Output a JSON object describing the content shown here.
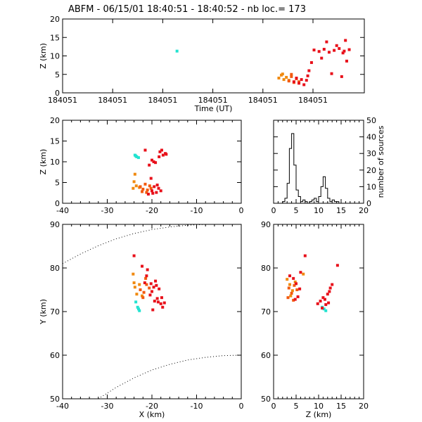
{
  "title": "ABFM - 06/15/01 18:40:51 - 18:40:52 - nb loc.=     173",
  "colors": {
    "cyan": "#22e3d0",
    "orange": "#f08a10",
    "dark_orange": "#f25a10",
    "red": "#e8101a",
    "axis": "#000000"
  },
  "chart_data": [
    {
      "type": "scatter",
      "panel": "time-height",
      "xlabel": "Time (UT)",
      "ylabel": "Z (km)",
      "xtick_labels": [
        "184051",
        "184051",
        "184051",
        "184051",
        "184051",
        "184051"
      ],
      "yticks": [
        0,
        5,
        10,
        15,
        20
      ],
      "ylim": [
        0,
        20
      ],
      "clusters": [
        {
          "color": "cyan",
          "x": [
            0.455
          ],
          "y": [
            11.3
          ]
        },
        {
          "color": "orange",
          "x": [
            0.86,
            0.87,
            0.88,
            0.875,
            0.89,
            0.9
          ],
          "y": [
            4.0,
            4.8,
            3.6,
            5.1,
            4.2,
            3.4
          ]
        },
        {
          "color": "dark_orange",
          "x": [
            0.9,
            0.91,
            0.92,
            0.93,
            0.91,
            0.94
          ],
          "y": [
            3.2,
            4.4,
            2.8,
            3.8,
            5.0,
            3.0
          ]
        },
        {
          "color": "red",
          "x": [
            0.92,
            0.94,
            0.95,
            0.96,
            0.97,
            0.93,
            0.975,
            0.99,
            1.0,
            1.02,
            1.04,
            1.06,
            1.08,
            1.1,
            1.12,
            0.98,
            1.03,
            1.07,
            1.11,
            1.13,
            1.14,
            1.05,
            1.09,
            1.115,
            1.125
          ],
          "y": [
            3.0,
            2.6,
            3.6,
            2.2,
            3.4,
            4.0,
            4.6,
            8.2,
            11.6,
            11.2,
            11.8,
            11.0,
            11.5,
            12.0,
            11.3,
            6.0,
            9.4,
            5.2,
            4.4,
            8.6,
            11.7,
            13.8,
            12.8,
            10.8,
            14.2
          ]
        }
      ]
    },
    {
      "type": "scatter",
      "panel": "x-height",
      "xlabel": "",
      "ylabel": "Z (km)",
      "xticks": [
        -40,
        -30,
        -20,
        -10,
        0
      ],
      "xlim": [
        -40,
        0
      ],
      "yticks": [
        0,
        5,
        10,
        15,
        20
      ],
      "ylim": [
        0,
        20
      ],
      "clusters": [
        {
          "color": "cyan",
          "x": [
            -23.8,
            -23.4,
            -23.0,
            -23.6
          ],
          "y": [
            11.6,
            11.2,
            11.0,
            11.4
          ]
        },
        {
          "color": "orange",
          "x": [
            -24.0,
            -23.5,
            -22.8,
            -23.8,
            -24.2
          ],
          "y": [
            5.2,
            4.2,
            3.8,
            7.0,
            3.6
          ]
        },
        {
          "color": "dark_orange",
          "x": [
            -22.6,
            -22.0,
            -21.5,
            -21.0,
            -20.5,
            -22.2,
            -21.2,
            -20.2
          ],
          "y": [
            4.0,
            3.4,
            4.6,
            3.2,
            4.2,
            2.8,
            2.6,
            3.6
          ]
        },
        {
          "color": "red",
          "x": [
            -20.0,
            -19.5,
            -19.0,
            -18.5,
            -18.0,
            -19.8,
            -18.8,
            -17.5,
            -17.0,
            -18.2,
            -19.2,
            -20.6,
            -20.0,
            -19.6,
            -20.2,
            -18.4,
            -17.8,
            -16.8,
            -21.5,
            -20.8
          ],
          "y": [
            3.0,
            4.0,
            2.6,
            3.6,
            3.0,
            2.4,
            4.4,
            11.6,
            12.0,
            12.4,
            9.8,
            9.2,
            10.4,
            10.0,
            6.0,
            11.2,
            12.8,
            11.8,
            12.8,
            2.2
          ]
        }
      ]
    },
    {
      "type": "bar",
      "panel": "histogram",
      "xlabel": "",
      "ylabel": "number of sources",
      "xticks": [
        0,
        5,
        10,
        15,
        20
      ],
      "xlim": [
        0,
        20
      ],
      "yticks": [
        0,
        10,
        20,
        30,
        40,
        50
      ],
      "ylim": [
        0,
        50
      ],
      "bin_width": 0.5,
      "bin_starts": [
        2.0,
        2.5,
        3.0,
        3.5,
        4.0,
        4.5,
        5.0,
        5.5,
        6.0,
        6.5,
        7.0,
        7.5,
        8.0,
        8.5,
        9.0,
        9.5,
        10.0,
        10.5,
        11.0,
        11.5,
        12.0,
        12.5,
        13.0,
        13.5,
        14.0
      ],
      "values": [
        1,
        3,
        12,
        33,
        42,
        23,
        8,
        4,
        1,
        2,
        1,
        0,
        1,
        2,
        3,
        1,
        4,
        10,
        16,
        9,
        3,
        1,
        2,
        1,
        1
      ]
    },
    {
      "type": "scatter",
      "panel": "plan-view",
      "xlabel": "X (km)",
      "ylabel": "Y (km)",
      "xticks": [
        -40,
        -30,
        -20,
        -10,
        0
      ],
      "xlim": [
        -40,
        0
      ],
      "yticks": [
        50,
        60,
        70,
        80,
        90
      ],
      "ylim": [
        50,
        90
      ],
      "clusters": [
        {
          "color": "cyan",
          "x": [
            -23.6,
            -23.2,
            -23.0,
            -22.8
          ],
          "y": [
            72.2,
            71.0,
            70.6,
            70.2
          ]
        },
        {
          "color": "orange",
          "x": [
            -24.2,
            -23.8,
            -23.4,
            -22.8,
            -22.2,
            -24.0
          ],
          "y": [
            78.6,
            75.6,
            74.0,
            76.2,
            73.6,
            76.6
          ]
        },
        {
          "color": "dark_orange",
          "x": [
            -22.6,
            -21.8,
            -21.2,
            -22.0,
            -20.6,
            -21.4
          ],
          "y": [
            75.0,
            74.4,
            76.2,
            73.2,
            75.4,
            77.6
          ]
        },
        {
          "color": "red",
          "x": [
            -24.0,
            -21.0,
            -20.2,
            -19.6,
            -19.0,
            -18.4,
            -18.8,
            -19.4,
            -20.4,
            -18.0,
            -17.6,
            -17.2,
            -19.8,
            -20.0,
            -18.6,
            -17.8,
            -21.2,
            -19.2,
            -22.2,
            -21.6
          ],
          "y": [
            82.8,
            79.6,
            76.4,
            75.6,
            76.0,
            75.2,
            73.0,
            72.4,
            73.8,
            71.8,
            71.0,
            72.0,
            70.4,
            74.6,
            72.2,
            73.2,
            78.2,
            77.0,
            80.4,
            76.6
          ]
        }
      ],
      "dotted_arcs": [
        {
          "x": [
            -40,
            -36,
            -32,
            -28,
            -24,
            -20,
            -16,
            -12,
            -8,
            -4,
            0
          ],
          "y": [
            81.0,
            83.2,
            85.1,
            86.7,
            87.9,
            88.8,
            89.4,
            89.8,
            90.0,
            90.0,
            90.0
          ]
        },
        {
          "x": [
            -32,
            -28,
            -24,
            -20,
            -16,
            -12,
            -8,
            -4,
            0
          ],
          "y": [
            50.0,
            52.6,
            54.8,
            56.6,
            57.9,
            58.9,
            59.5,
            59.9,
            60.0
          ]
        }
      ]
    },
    {
      "type": "scatter",
      "panel": "z-y",
      "xlabel": "Z (km)",
      "ylabel": "",
      "xticks": [
        0,
        5,
        10,
        15,
        20
      ],
      "xlim": [
        0,
        20
      ],
      "yticks": [
        50,
        60,
        70,
        80,
        90
      ],
      "ylim": [
        50,
        90
      ],
      "clusters": [
        {
          "color": "cyan",
          "x": [
            11.2,
            11.6,
            10.8
          ],
          "y": [
            70.6,
            70.2,
            71.0
          ]
        },
        {
          "color": "orange",
          "x": [
            3.0,
            3.6,
            4.2,
            4.8,
            6.6,
            3.8
          ],
          "y": [
            77.4,
            76.2,
            74.8,
            76.8,
            78.6,
            73.6
          ]
        },
        {
          "color": "dark_orange",
          "x": [
            3.4,
            4.0,
            4.6,
            5.2,
            3.2,
            4.4
          ],
          "y": [
            75.4,
            74.2,
            76.0,
            75.0,
            73.2,
            72.6
          ]
        },
        {
          "color": "red",
          "x": [
            4.4,
            5.0,
            5.8,
            3.6,
            7.0,
            10.4,
            11.0,
            11.6,
            12.0,
            12.4,
            11.4,
            10.8,
            12.6,
            13.0,
            14.2,
            6.0,
            5.4,
            4.8,
            9.8,
            12.2
          ],
          "y": [
            77.6,
            76.4,
            75.2,
            78.2,
            82.8,
            72.4,
            73.2,
            71.6,
            74.0,
            74.6,
            72.8,
            70.8,
            75.4,
            76.2,
            80.6,
            79.0,
            73.4,
            72.8,
            71.8,
            72.0
          ]
        }
      ]
    }
  ]
}
